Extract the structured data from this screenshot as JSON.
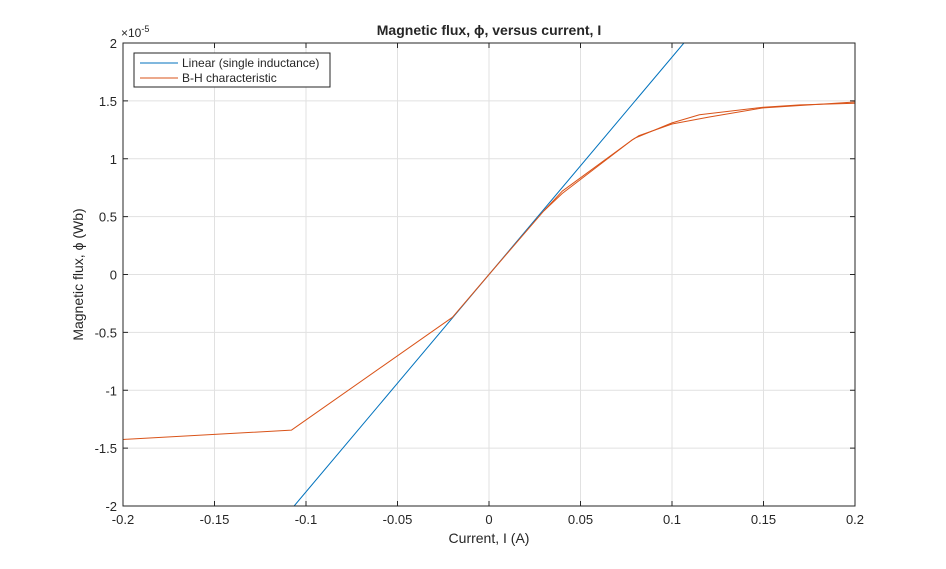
{
  "chart_data": {
    "type": "line",
    "title": "Magnetic  flux,  ϕ,  versus  current,  I",
    "xlabel": "Current, I (A)",
    "ylabel": "Magnetic  flux,  ϕ  (Wb)",
    "xlim": [
      -0.2,
      0.2
    ],
    "ylim": [
      -2e-05,
      2e-05
    ],
    "xticks": [
      -0.2,
      -0.15,
      -0.1,
      -0.05,
      0,
      0.05,
      0.1,
      0.15,
      0.2
    ],
    "xtick_labels": [
      "-0.2",
      "-0.15",
      "-0.1",
      "-0.05",
      "0",
      "0.05",
      "0.1",
      "0.15",
      "0.2"
    ],
    "yticks": [
      -2e-05,
      -1.5e-05,
      -1e-05,
      -5e-06,
      0,
      5e-06,
      1e-05,
      1.5e-05,
      2e-05
    ],
    "ytick_labels": [
      "-2",
      "-1.5",
      "-1",
      "-0.5",
      "0",
      "0.5",
      "1",
      "1.5",
      "2"
    ],
    "y_exponent_label": "×10",
    "y_exponent_power": "-5",
    "grid": true,
    "legend_position": "top-left",
    "series": [
      {
        "name": "Linear (single inductance)",
        "color": "#0072BD",
        "x": [
          -0.1065,
          0.1065
        ],
        "y": [
          -2e-05,
          2e-05
        ]
      },
      {
        "name": "B-H characteristic",
        "color": "#D95319",
        "x": [
          -0.2,
          -0.108,
          -0.02,
          0,
          0.03,
          0.04,
          0.078,
          0.08,
          0.1,
          0.115,
          0.15,
          0.17,
          0.2
        ],
        "y": [
          -1.425e-05,
          -1.345e-05,
          -3.7e-06,
          0,
          5.5e-06,
          7.2e-06,
          1.16e-05,
          1.18e-05,
          1.31e-05,
          1.38e-05,
          1.445e-05,
          1.465e-05,
          1.48e-05
        ]
      },
      {
        "name": "",
        "color": "#D95319",
        "x": [
          0.03,
          0.04,
          0.078,
          0.082,
          0.1,
          0.12,
          0.15,
          0.17,
          0.2
        ],
        "y": [
          5.5e-06,
          7e-06,
          1.16e-05,
          1.2e-05,
          1.3e-05,
          1.36e-05,
          1.44e-05,
          1.46e-05,
          1.49e-05
        ]
      }
    ]
  }
}
